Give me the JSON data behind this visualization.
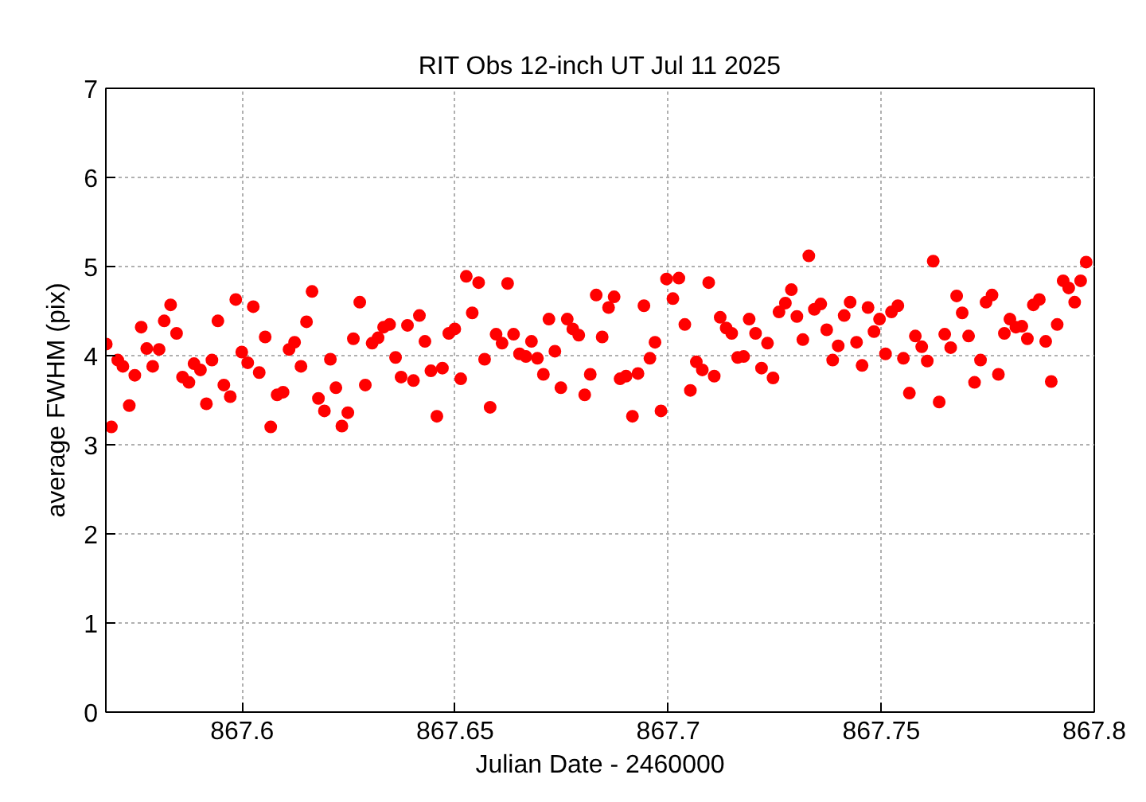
{
  "chart_data": {
    "type": "scatter",
    "title": "RIT Obs 12-inch UT Jul 11 2025",
    "xlabel": "Julian Date - 2460000",
    "ylabel": "average FWHM (pix)",
    "xlim": [
      867.568,
      867.8
    ],
    "ylim": [
      0,
      7
    ],
    "xticks": [
      867.6,
      867.65,
      867.7,
      867.75,
      867.8
    ],
    "yticks": [
      0,
      1,
      2,
      3,
      4,
      5,
      6,
      7
    ],
    "grid": true,
    "marker": "circle",
    "series": [
      {
        "color": "#ff0000",
        "x": [
          867.5681,
          867.5693,
          867.5708,
          867.572,
          867.5735,
          867.5748,
          867.5763,
          867.5776,
          867.579,
          867.5805,
          867.5817,
          867.5832,
          867.5846,
          867.586,
          867.5875,
          867.5887,
          867.5902,
          867.5916,
          867.5929,
          867.5943,
          867.5957,
          867.5972,
          867.5985,
          867.5999,
          867.6013,
          867.6026,
          867.604,
          867.6054,
          867.6067,
          867.6082,
          867.6096,
          867.611,
          867.6123,
          867.6138,
          867.6151,
          867.6164,
          867.6179,
          867.6193,
          867.6207,
          867.622,
          867.6234,
          867.6248,
          867.6261,
          867.6276,
          867.6289,
          867.6305,
          867.6319,
          867.6332,
          867.6346,
          867.636,
          867.6373,
          867.6388,
          867.6402,
          867.6416,
          867.6429,
          867.6443,
          867.6457,
          867.647,
          867.6485,
          867.6499,
          867.6513,
          867.6526,
          867.654,
          867.6555,
          867.6569,
          867.6582,
          867.6596,
          867.661,
          867.6623,
          867.6637,
          867.6651,
          867.6666,
          867.6679,
          867.6693,
          867.6707,
          867.672,
          867.6734,
          867.6748,
          867.6763,
          867.6776,
          867.679,
          867.6804,
          867.6817,
          867.6831,
          867.6845,
          867.686,
          867.6873,
          867.6887,
          867.6901,
          867.6916,
          867.6929,
          867.6943,
          867.6957,
          867.6969,
          867.6983,
          867.6996,
          867.7011,
          867.7025,
          867.7039,
          867.7052,
          867.7066,
          867.708,
          867.7095,
          867.7108,
          867.7122,
          867.7136,
          867.7149,
          867.7163,
          867.7177,
          867.719,
          867.7205,
          867.7219,
          867.7233,
          867.7246,
          867.726,
          867.7275,
          867.7289,
          867.7302,
          867.7316,
          867.733,
          867.7343,
          867.7358,
          867.7372,
          867.7386,
          867.7399,
          867.7413,
          867.7427,
          867.7442,
          867.7455,
          867.7469,
          867.7483,
          867.7496,
          867.751,
          867.7524,
          867.7539,
          867.7552,
          867.7566,
          867.758,
          867.7595,
          867.7608,
          867.7622,
          867.7636,
          867.7649,
          867.7663,
          867.7677,
          867.769,
          867.7705,
          867.7719,
          867.7733,
          867.7746,
          867.776,
          867.7775,
          867.7789,
          867.7802,
          867.7816,
          867.783,
          867.7843,
          867.7857,
          867.7871,
          867.7886,
          867.7899,
          867.7913,
          867.7927,
          867.794,
          867.7954,
          867.7968,
          867.7981
        ],
        "values": [
          4.13,
          3.2,
          3.95,
          3.88,
          3.44,
          3.78,
          4.32,
          4.08,
          3.88,
          4.07,
          4.39,
          4.57,
          4.25,
          3.76,
          3.7,
          3.91,
          3.84,
          3.46,
          3.95,
          4.39,
          3.67,
          3.54,
          4.63,
          4.04,
          3.92,
          4.55,
          3.81,
          4.21,
          3.2,
          3.56,
          3.59,
          4.07,
          4.15,
          3.88,
          4.38,
          4.72,
          3.52,
          3.38,
          3.96,
          3.64,
          3.21,
          3.36,
          4.19,
          4.6,
          3.67,
          4.14,
          4.2,
          4.32,
          4.35,
          3.98,
          3.76,
          4.34,
          3.72,
          4.45,
          4.16,
          3.83,
          3.32,
          3.86,
          4.25,
          4.3,
          3.74,
          4.89,
          4.48,
          4.82,
          3.96,
          3.42,
          4.24,
          4.14,
          4.81,
          4.24,
          4.02,
          3.99,
          4.16,
          3.97,
          3.79,
          4.41,
          4.05,
          3.64,
          4.41,
          4.3,
          4.23,
          3.56,
          3.79,
          4.68,
          4.21,
          4.54,
          4.66,
          3.74,
          3.77,
          3.32,
          3.8,
          4.56,
          3.97,
          4.15,
          3.38,
          4.86,
          4.64,
          4.87,
          4.35,
          3.61,
          3.93,
          3.84,
          4.82,
          3.77,
          4.43,
          4.31,
          4.25,
          3.98,
          3.99,
          4.41,
          4.25,
          3.86,
          4.14,
          3.75,
          4.49,
          4.59,
          4.74,
          4.44,
          4.18,
          5.12,
          4.52,
          4.58,
          4.29,
          3.95,
          4.11,
          4.45,
          4.6,
          4.15,
          3.89,
          4.54,
          4.27,
          4.41,
          4.02,
          4.49,
          4.56,
          3.97,
          3.58,
          4.22,
          4.1,
          3.94,
          5.06,
          3.48,
          4.24,
          4.09,
          4.67,
          4.48,
          4.22,
          3.7,
          3.95,
          4.6,
          4.68,
          3.79,
          4.25,
          4.41,
          4.32,
          4.33,
          4.19,
          4.57,
          4.63,
          4.16,
          3.71,
          4.35,
          4.84,
          4.76,
          4.6,
          4.84,
          5.05
        ]
      }
    ]
  }
}
